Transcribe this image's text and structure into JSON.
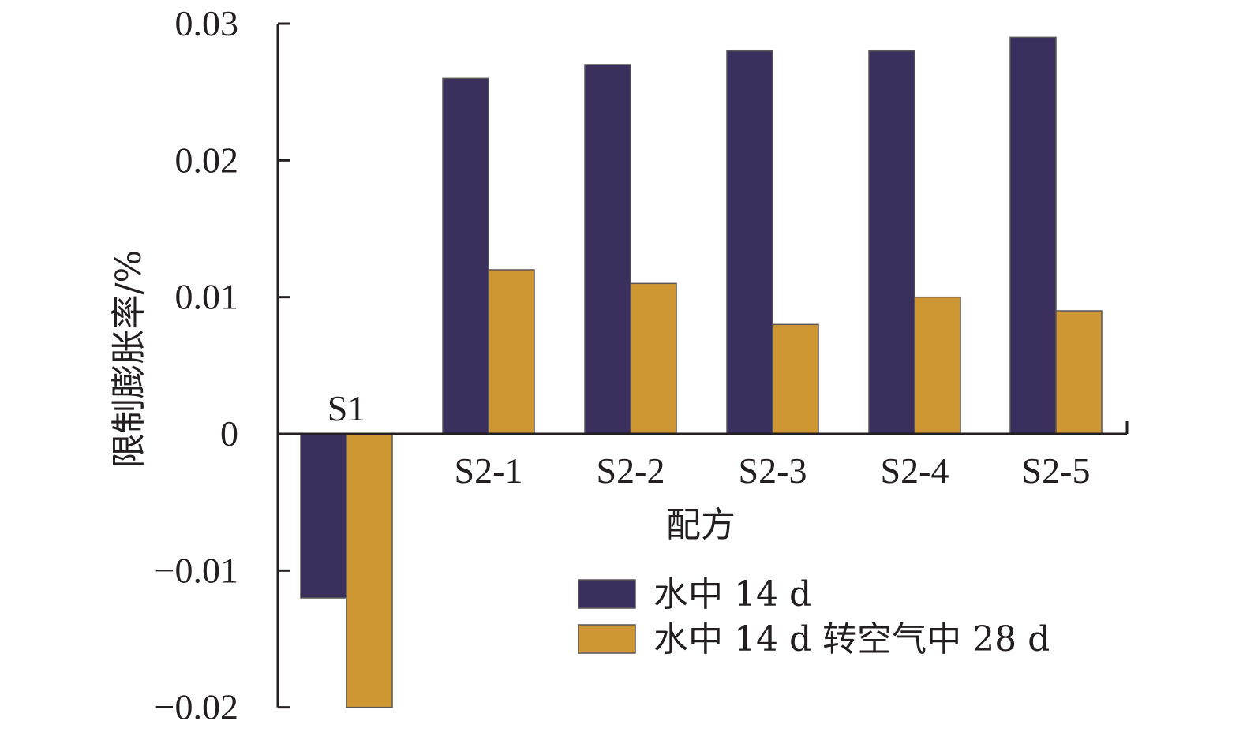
{
  "chart_data": {
    "type": "bar",
    "title": "",
    "xlabel": "配方",
    "ylabel": "限制膨胀率/%",
    "categories": [
      "S1",
      "S2-1",
      "S2-2",
      "S2-3",
      "S2-4",
      "S2-5"
    ],
    "series": [
      {
        "name": "水中 14 d",
        "color": "#3b2f5e",
        "values": [
          -0.012,
          0.026,
          0.027,
          0.028,
          0.028,
          0.029
        ]
      },
      {
        "name": "水中 14 d 转空气中 28 d",
        "color": "#cf9733",
        "values": [
          -0.02,
          0.012,
          0.011,
          0.008,
          0.01,
          0.009
        ]
      }
    ],
    "ylim": [
      -0.02,
      0.03
    ],
    "yticks": [
      0.03,
      0.02,
      0.01,
      0,
      -0.01,
      -0.02
    ],
    "ytick_labels": [
      "0.03",
      "0.02",
      "0.01",
      "0",
      "−0.01",
      "−0.02"
    ],
    "grid": false,
    "legend_position": "bottom-right",
    "category_label_position": "S1 above axis, others below axis"
  }
}
